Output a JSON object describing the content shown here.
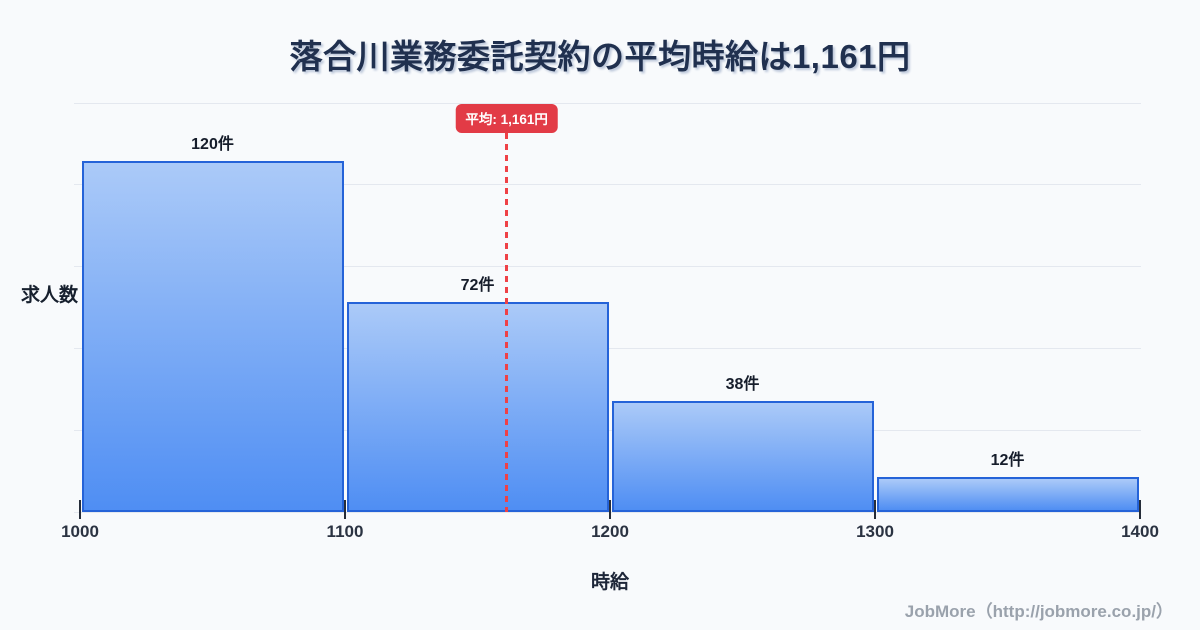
{
  "title": "落合川業務委託契約の平均時給は1,161円",
  "footer": "JobMore（http://jobmore.co.jp/）",
  "colors": {
    "background": "#f8fafc",
    "title_text": "#20304f",
    "bar_fill_top": "#abcaf8",
    "bar_fill_bottom": "#4f8ef3",
    "bar_border": "#2563d8",
    "grid": "#e4e8ef",
    "avg_line": "#ef4146",
    "badge_bg": "#e23b46",
    "badge_text": "#ffffff",
    "footer_text": "#9aa2ac"
  },
  "chart_data": {
    "type": "bar",
    "subtype": "histogram",
    "title": "落合川業務委託契約の平均時給は1,161円",
    "xlabel": "時給",
    "ylabel": "求人数",
    "categories": [
      "1000-1100",
      "1100-1200",
      "1200-1300",
      "1300-1400"
    ],
    "values": [
      120,
      72,
      38,
      12
    ],
    "bar_labels": [
      "120件",
      "72件",
      "38件",
      "12件"
    ],
    "bin_edges": [
      1000,
      1100,
      1200,
      1300,
      1400
    ],
    "x_tick_values": [
      1000,
      1100,
      1200,
      1300,
      1400
    ],
    "x_ticks": [
      "1000",
      "1100",
      "1200",
      "1300",
      "1400"
    ],
    "xlim": [
      1000,
      1400
    ],
    "ylim": [
      0,
      140
    ],
    "grid": "horizontal",
    "grid_divisions": 5,
    "legend": "none",
    "annotation": {
      "label": "平均: 1,161円",
      "x": 1161
    }
  }
}
